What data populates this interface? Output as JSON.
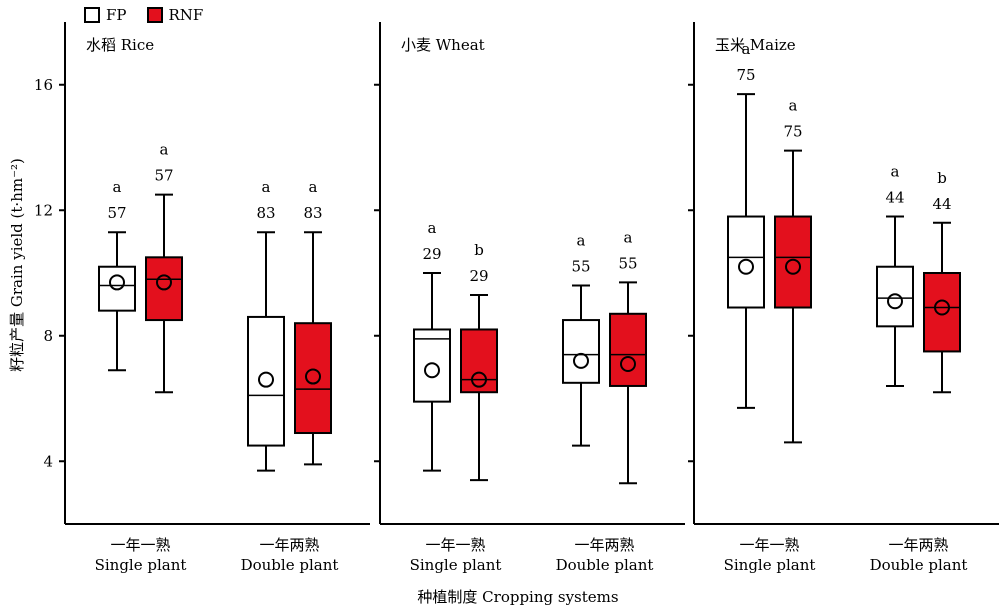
{
  "legend": {
    "fp": "FP",
    "rnf": "RNF"
  },
  "colors": {
    "fp": "#ffffff",
    "rnf": "#e3101d",
    "stroke": "#000000"
  },
  "ylabel": "籽粒产量 Grain yield (t·hm⁻²)",
  "xlabel": "种植制度 Cropping systems",
  "categories": [
    {
      "cn": "一年一熟",
      "en": "Single plant"
    },
    {
      "cn": "一年两熟",
      "en": "Double plant"
    }
  ],
  "chart_data": {
    "type": "box",
    "ylim": [
      2,
      18
    ],
    "yticks": [
      4,
      8,
      12,
      16
    ],
    "panels": [
      {
        "title": "水稻 Rice",
        "groups": [
          {
            "boxes": [
              {
                "series": "FP",
                "min": 6.9,
                "q1": 8.8,
                "median": 9.6,
                "q3": 10.2,
                "max": 11.3,
                "mean": 9.7,
                "n": "57",
                "letter": "a"
              },
              {
                "series": "RNF",
                "min": 6.2,
                "q1": 8.5,
                "median": 9.8,
                "q3": 10.5,
                "max": 12.5,
                "mean": 9.7,
                "n": "57",
                "letter": "a"
              }
            ]
          },
          {
            "boxes": [
              {
                "series": "FP",
                "min": 3.7,
                "q1": 4.5,
                "median": 6.1,
                "q3": 8.6,
                "max": 11.3,
                "mean": 6.6,
                "n": "83",
                "letter": "a"
              },
              {
                "series": "RNF",
                "min": 3.9,
                "q1": 4.9,
                "median": 6.3,
                "q3": 8.4,
                "max": 11.3,
                "mean": 6.7,
                "n": "83",
                "letter": "a"
              }
            ]
          }
        ]
      },
      {
        "title": "小麦 Wheat",
        "groups": [
          {
            "boxes": [
              {
                "series": "FP",
                "min": 3.7,
                "q1": 5.9,
                "median": 7.9,
                "q3": 8.2,
                "max": 10.0,
                "mean": 6.9,
                "n": "29",
                "letter": "a"
              },
              {
                "series": "RNF",
                "min": 3.4,
                "q1": 6.2,
                "median": 6.6,
                "q3": 8.2,
                "max": 9.3,
                "mean": 6.6,
                "n": "29",
                "letter": "b"
              }
            ]
          },
          {
            "boxes": [
              {
                "series": "FP",
                "min": 4.5,
                "q1": 6.5,
                "median": 7.4,
                "q3": 8.5,
                "max": 9.6,
                "mean": 7.2,
                "n": "55",
                "letter": "a"
              },
              {
                "series": "RNF",
                "min": 3.3,
                "q1": 6.4,
                "median": 7.4,
                "q3": 8.7,
                "max": 9.7,
                "mean": 7.1,
                "n": "55",
                "letter": "a"
              }
            ]
          }
        ]
      },
      {
        "title": "玉米 Maize",
        "groups": [
          {
            "boxes": [
              {
                "series": "FP",
                "min": 5.7,
                "q1": 8.9,
                "median": 10.5,
                "q3": 11.8,
                "max": 15.7,
                "mean": 10.2,
                "n": "75",
                "letter": "a"
              },
              {
                "series": "RNF",
                "min": 4.6,
                "q1": 8.9,
                "median": 10.5,
                "q3": 11.8,
                "max": 13.9,
                "mean": 10.2,
                "n": "75",
                "letter": "a"
              }
            ]
          },
          {
            "boxes": [
              {
                "series": "FP",
                "min": 6.4,
                "q1": 8.3,
                "median": 9.2,
                "q3": 10.2,
                "max": 11.8,
                "mean": 9.1,
                "n": "44",
                "letter": "a"
              },
              {
                "series": "RNF",
                "min": 6.2,
                "q1": 7.5,
                "median": 8.9,
                "q3": 10.0,
                "max": 11.6,
                "mean": 8.9,
                "n": "44",
                "letter": "b"
              }
            ]
          }
        ]
      }
    ]
  }
}
